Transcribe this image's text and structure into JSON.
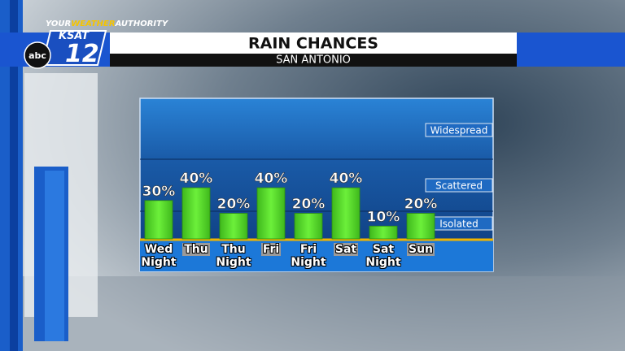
{
  "branding": {
    "tagline_your": "YOUR",
    "tagline_weather": "WEATHER",
    "tagline_authority": "AUTHORITY",
    "station": "KSAT",
    "channel": "12",
    "network": "abc"
  },
  "chart_data": {
    "type": "bar",
    "title": "RAIN CHANCES",
    "subtitle": "SAN ANTONIO",
    "categories": [
      "Wed Night",
      "Thu",
      "Thu Night",
      "Fri",
      "Fri Night",
      "Sat",
      "Sat Night",
      "Sun"
    ],
    "values": [
      30,
      40,
      20,
      40,
      20,
      40,
      10,
      20
    ],
    "value_labels": [
      "30%",
      "40%",
      "20%",
      "40%",
      "20%",
      "40%",
      "10%",
      "20%"
    ],
    "color": "#5fe02c",
    "ylim": [
      0,
      110
    ],
    "bands": [
      "Widespread",
      "Scattered",
      "Isolated"
    ]
  }
}
